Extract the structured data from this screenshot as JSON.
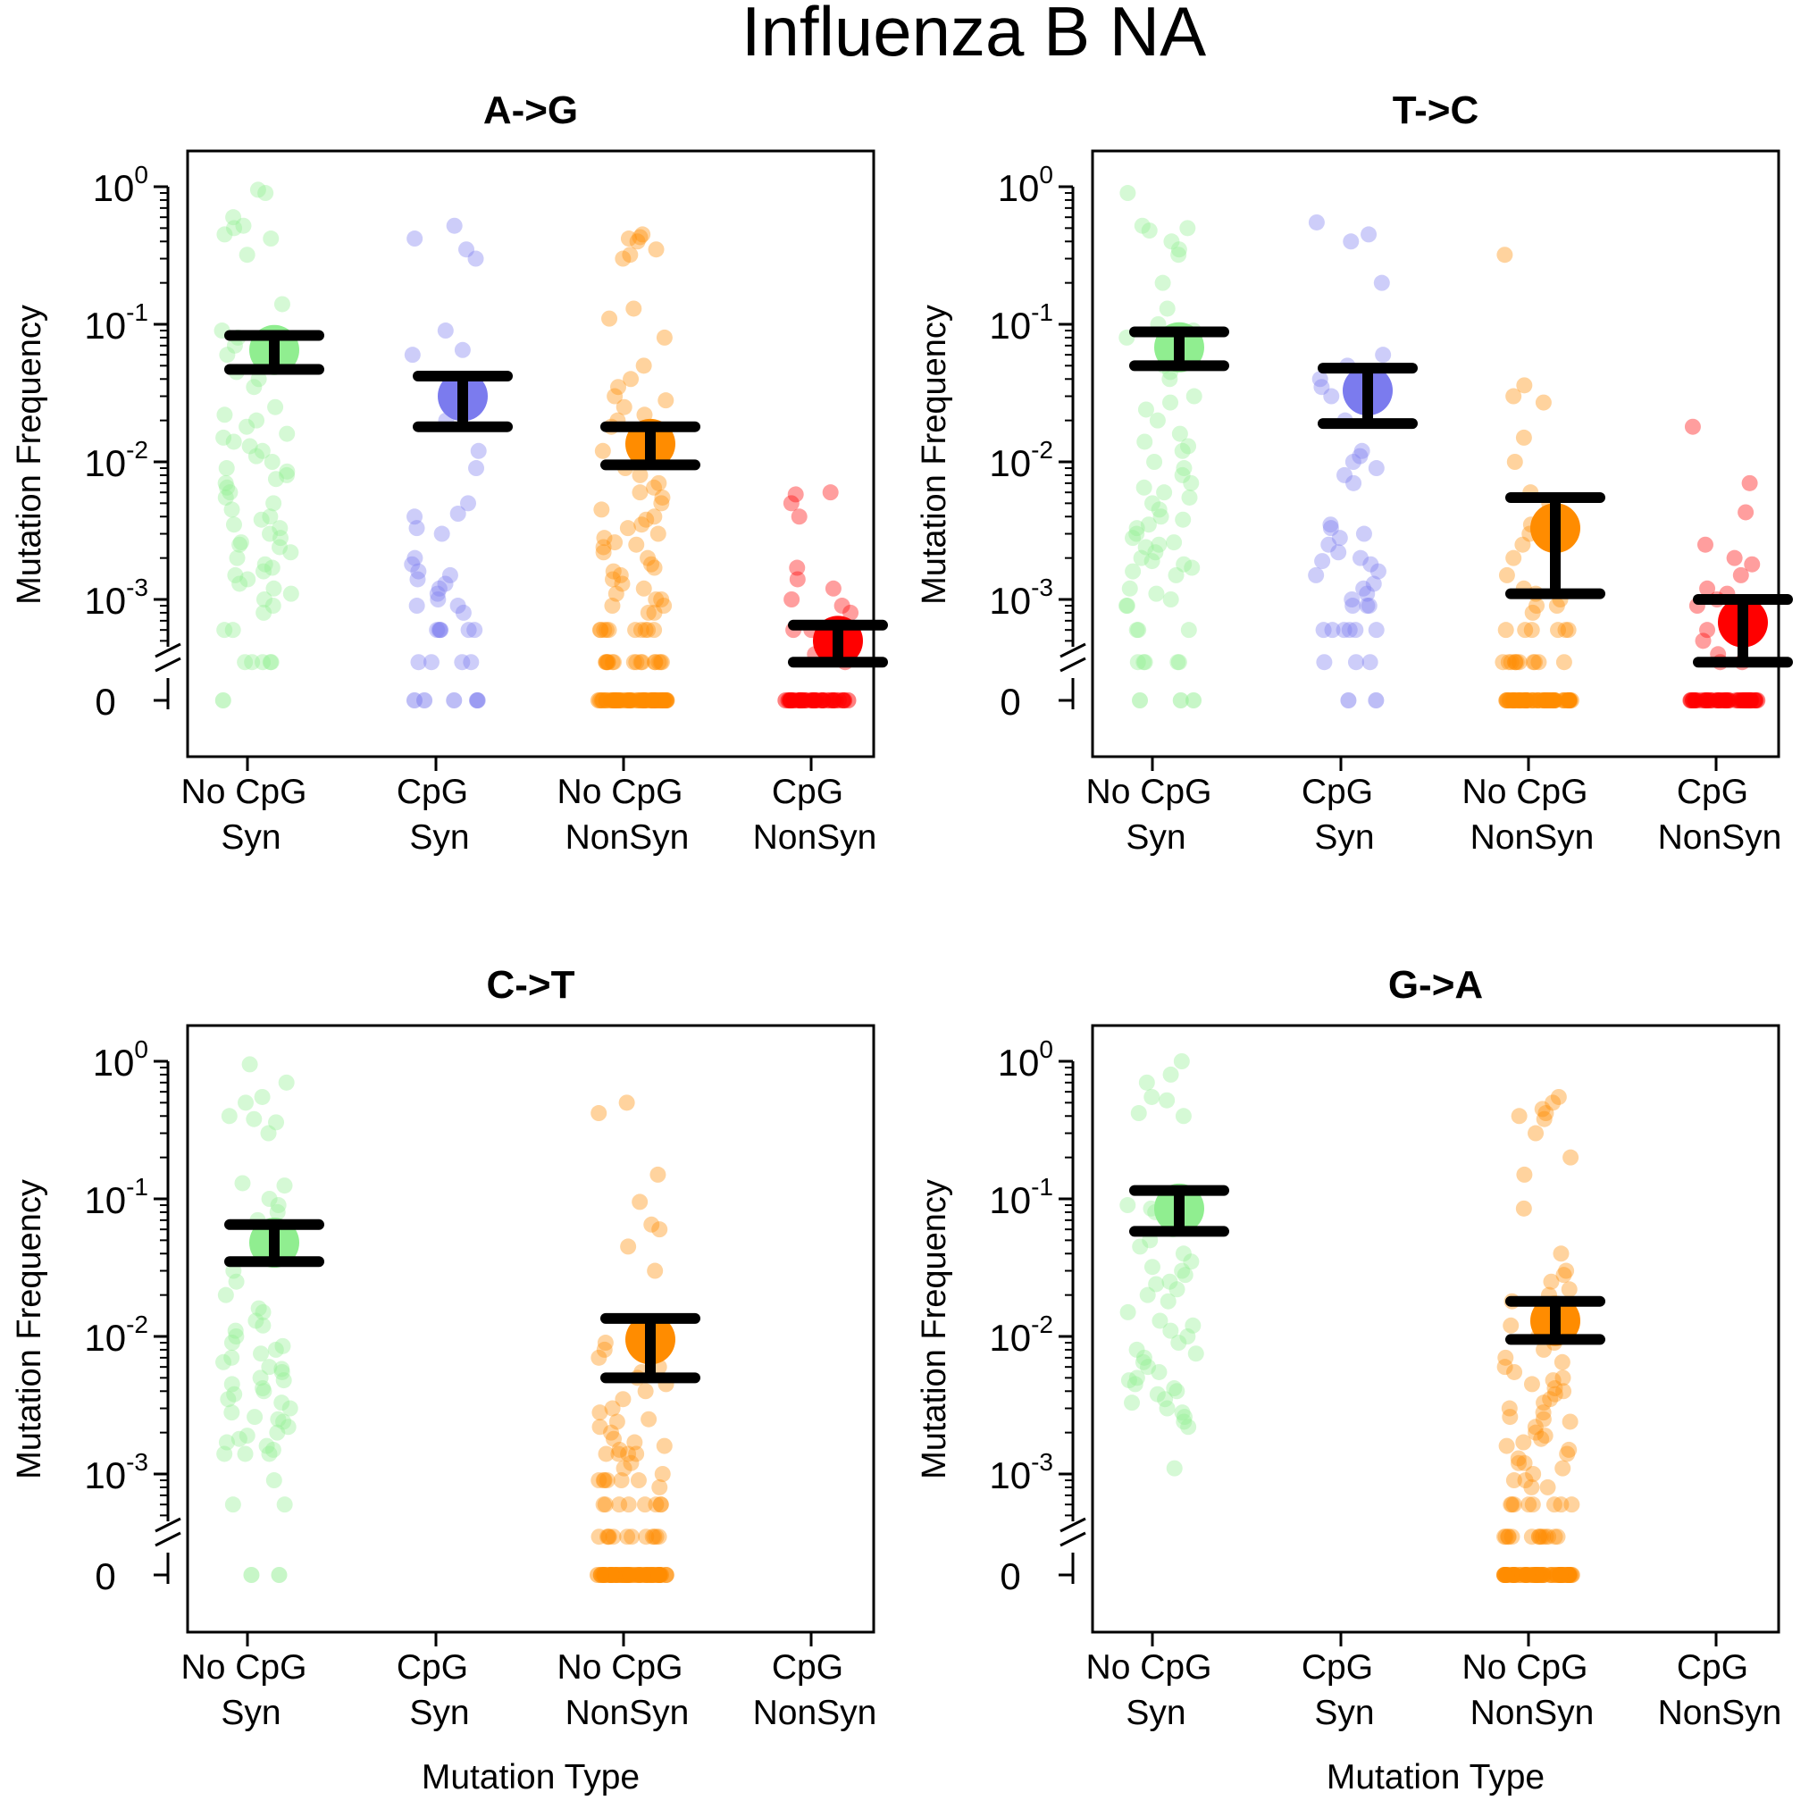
{
  "title": "Influenza B NA",
  "ylabel": "Mutation Frequency",
  "xlabel": "Mutation Type",
  "y_tick_labels": [
    {
      "base": "10",
      "exp": "0"
    },
    {
      "base": "10",
      "exp": "-1"
    },
    {
      "base": "10",
      "exp": "-2"
    },
    {
      "base": "10",
      "exp": "-3"
    },
    {
      "base": "0",
      "exp": ""
    }
  ],
  "categories": [
    {
      "line1": "No CpG",
      "line2": "Syn"
    },
    {
      "line1": "CpG",
      "line2": "Syn"
    },
    {
      "line1": "No CpG",
      "line2": "NonSyn"
    },
    {
      "line1": "CpG",
      "line2": "NonSyn"
    }
  ],
  "colors": {
    "no_cpg_syn": "#90ee90",
    "cpg_syn": "#7b7bee",
    "no_cpg_nonsyn": "#ff8c00",
    "cpg_nonsyn": "#ff0000",
    "error_bar": "#000000"
  },
  "chart_data": [
    {
      "type": "scatter",
      "title": "A->G",
      "yscale": "log with zero break",
      "ylim": [
        0.00035,
        1
      ],
      "series": [
        {
          "category": "No CpG Syn",
          "mean": 0.065,
          "ci": [
            0.047,
            0.083
          ],
          "zeros": 1,
          "values": [
            0.9,
            0.95,
            0.6,
            0.52,
            0.5,
            0.45,
            0.42,
            0.32,
            0.14,
            0.09,
            0.08,
            0.07,
            0.06,
            0.05,
            0.045,
            0.04,
            0.035,
            0.025,
            0.022,
            0.02,
            0.018,
            0.016,
            0.015,
            0.014,
            0.013,
            0.012,
            0.011,
            0.01,
            0.009,
            0.0085,
            0.008,
            0.0075,
            0.007,
            0.0065,
            0.006,
            0.0055,
            0.005,
            0.0045,
            0.004,
            0.0038,
            0.0035,
            0.0033,
            0.003,
            0.0028,
            0.0026,
            0.0025,
            0.0024,
            0.0022,
            0.002,
            0.0018,
            0.0017,
            0.0016,
            0.0015,
            0.0014,
            0.0013,
            0.0012,
            0.0011,
            0.001,
            0.0009,
            0.0008,
            0.0006,
            0.0006,
            0.00035,
            0.00035,
            0.00035,
            0.00035,
            0.00035
          ]
        },
        {
          "category": "CpG Syn",
          "mean": 0.03,
          "ci": [
            0.018,
            0.042
          ],
          "zeros": 5,
          "values": [
            0.52,
            0.42,
            0.35,
            0.3,
            0.09,
            0.065,
            0.06,
            0.04,
            0.02,
            0.012,
            0.009,
            0.005,
            0.0042,
            0.004,
            0.0033,
            0.003,
            0.002,
            0.0018,
            0.0016,
            0.0015,
            0.0014,
            0.0013,
            0.0012,
            0.0011,
            0.001,
            0.0009,
            0.0009,
            0.0008,
            0.0006,
            0.0006,
            0.0006,
            0.0006,
            0.0006,
            0.0006,
            0.00035,
            0.00035,
            0.00035,
            0.00035
          ]
        },
        {
          "category": "No CpG NonSyn",
          "mean": 0.0135,
          "ci": [
            0.0095,
            0.018
          ],
          "zeros": 60,
          "values": [
            0.45,
            0.43,
            0.42,
            0.4,
            0.35,
            0.32,
            0.3,
            0.13,
            0.11,
            0.08,
            0.05,
            0.04,
            0.035,
            0.03,
            0.028,
            0.025,
            0.022,
            0.02,
            0.018,
            0.016,
            0.014,
            0.012,
            0.011,
            0.01,
            0.009,
            0.008,
            0.007,
            0.0065,
            0.006,
            0.0055,
            0.005,
            0.0045,
            0.004,
            0.0038,
            0.0035,
            0.0033,
            0.003,
            0.0028,
            0.0026,
            0.0025,
            0.0024,
            0.0022,
            0.002,
            0.0018,
            0.0017,
            0.0016,
            0.0015,
            0.0014,
            0.0013,
            0.0012,
            0.0011,
            0.001,
            0.001,
            0.0009,
            0.0009,
            0.0008,
            0.0008,
            0.0006,
            0.0006,
            0.0006,
            0.0006,
            0.0006,
            0.0006,
            0.0006,
            0.0006,
            0.0006,
            0.0006,
            0.00035,
            0.00035,
            0.00035,
            0.00035,
            0.00035,
            0.00035,
            0.00035,
            0.00035,
            0.00035,
            0.00035,
            0.00035,
            0.00035,
            0.00035,
            0.00035,
            0.00035,
            0.00035
          ]
        },
        {
          "category": "CpG NonSyn",
          "mean": 0.0005,
          "ci": [
            0.00035,
            0.00065
          ],
          "zeros": 40,
          "values": [
            0.006,
            0.0058,
            0.005,
            0.004,
            0.0017,
            0.0014,
            0.0012,
            0.001,
            0.0009,
            0.0008,
            0.0006,
            0.0006,
            0.0005,
            0.0004,
            0.00035
          ]
        }
      ]
    },
    {
      "type": "scatter",
      "title": "T->C",
      "yscale": "log with zero break",
      "ylim": [
        0.00035,
        1
      ],
      "series": [
        {
          "category": "No CpG Syn",
          "mean": 0.068,
          "ci": [
            0.05,
            0.088
          ],
          "zeros": 3,
          "values": [
            0.9,
            0.52,
            0.5,
            0.48,
            0.4,
            0.35,
            0.32,
            0.2,
            0.13,
            0.1,
            0.09,
            0.08,
            0.07,
            0.06,
            0.05,
            0.045,
            0.04,
            0.03,
            0.027,
            0.024,
            0.02,
            0.016,
            0.014,
            0.013,
            0.012,
            0.01,
            0.009,
            0.008,
            0.007,
            0.0065,
            0.006,
            0.0055,
            0.005,
            0.0045,
            0.004,
            0.0038,
            0.0035,
            0.0033,
            0.003,
            0.0028,
            0.0026,
            0.0025,
            0.0024,
            0.0022,
            0.002,
            0.0019,
            0.0018,
            0.0017,
            0.0016,
            0.0015,
            0.0012,
            0.0011,
            0.001,
            0.0009,
            0.0009,
            0.0006,
            0.0006,
            0.0006,
            0.00035,
            0.00035,
            0.00035,
            0.00035,
            0.00035
          ]
        },
        {
          "category": "CpG Syn",
          "mean": 0.033,
          "ci": [
            0.019,
            0.048
          ],
          "zeros": 2,
          "values": [
            0.55,
            0.45,
            0.4,
            0.2,
            0.06,
            0.05,
            0.04,
            0.035,
            0.03,
            0.02,
            0.012,
            0.011,
            0.01,
            0.009,
            0.008,
            0.007,
            0.0035,
            0.0033,
            0.003,
            0.0028,
            0.0025,
            0.0022,
            0.002,
            0.0019,
            0.0018,
            0.0016,
            0.0015,
            0.0013,
            0.0012,
            0.0011,
            0.001,
            0.0009,
            0.0009,
            0.0009,
            0.0006,
            0.0006,
            0.0006,
            0.0006,
            0.0006,
            0.0006,
            0.00035,
            0.00035,
            0.00035
          ]
        },
        {
          "category": "No CpG NonSyn",
          "mean": 0.0033,
          "ci": [
            0.0011,
            0.0055
          ],
          "zeros": 55,
          "values": [
            0.32,
            0.036,
            0.03,
            0.027,
            0.015,
            0.01,
            0.006,
            0.005,
            0.004,
            0.0035,
            0.003,
            0.0025,
            0.002,
            0.0015,
            0.0012,
            0.0011,
            0.001,
            0.0009,
            0.0009,
            0.0008,
            0.0006,
            0.0006,
            0.0006,
            0.0006,
            0.0006,
            0.0006,
            0.00035,
            0.00035,
            0.00035,
            0.00035,
            0.00035,
            0.00035,
            0.00035,
            0.00035,
            0.00035,
            0.00035,
            0.00035
          ]
        },
        {
          "category": "CpG NonSyn",
          "mean": 0.00068,
          "ci": [
            0.00035,
            0.001
          ],
          "zeros": 50,
          "values": [
            0.018,
            0.007,
            0.0043,
            0.0025,
            0.002,
            0.0018,
            0.0015,
            0.0012,
            0.0011,
            0.001,
            0.0009,
            0.0008,
            0.0007,
            0.0006,
            0.0005,
            0.0004,
            0.00035,
            0.00035
          ]
        }
      ]
    },
    {
      "type": "scatter",
      "title": "C->T",
      "yscale": "log with zero break",
      "ylim": [
        0.00035,
        1
      ],
      "series": [
        {
          "category": "No CpG Syn",
          "mean": 0.048,
          "ci": [
            0.035,
            0.065
          ],
          "zeros": 2,
          "values": [
            0.95,
            0.7,
            0.55,
            0.5,
            0.4,
            0.38,
            0.36,
            0.3,
            0.13,
            0.125,
            0.1,
            0.09,
            0.08,
            0.07,
            0.06,
            0.05,
            0.04,
            0.03,
            0.025,
            0.02,
            0.016,
            0.015,
            0.013,
            0.012,
            0.011,
            0.01,
            0.009,
            0.0085,
            0.008,
            0.0075,
            0.007,
            0.0065,
            0.006,
            0.0058,
            0.0055,
            0.005,
            0.0048,
            0.0045,
            0.0042,
            0.004,
            0.0038,
            0.0035,
            0.0033,
            0.003,
            0.0028,
            0.0026,
            0.0025,
            0.0024,
            0.0022,
            0.002,
            0.0019,
            0.0018,
            0.0017,
            0.0016,
            0.0015,
            0.0014,
            0.0014,
            0.0014,
            0.0009,
            0.0006,
            0.0006
          ]
        },
        {
          "category": "CpG Syn",
          "mean": null,
          "ci": null,
          "zeros": 0,
          "values": []
        },
        {
          "category": "No CpG NonSyn",
          "mean": 0.0095,
          "ci": [
            0.005,
            0.0135
          ],
          "zeros": 55,
          "values": [
            0.5,
            0.42,
            0.15,
            0.095,
            0.065,
            0.06,
            0.045,
            0.03,
            0.012,
            0.01,
            0.009,
            0.008,
            0.007,
            0.006,
            0.0055,
            0.005,
            0.0045,
            0.004,
            0.0035,
            0.003,
            0.0028,
            0.0025,
            0.0024,
            0.0022,
            0.002,
            0.0018,
            0.0017,
            0.0016,
            0.0015,
            0.0014,
            0.0014,
            0.0014,
            0.0014,
            0.0012,
            0.0011,
            0.001,
            0.0009,
            0.0009,
            0.0009,
            0.0009,
            0.0009,
            0.0009,
            0.0008,
            0.0006,
            0.0006,
            0.0006,
            0.0006,
            0.0006,
            0.0006,
            0.0006,
            0.0006,
            0.00035,
            0.00035,
            0.00035,
            0.00035,
            0.00035,
            0.00035,
            0.00035,
            0.00035,
            0.00035,
            0.00035,
            0.00035,
            0.00035
          ]
        },
        {
          "category": "CpG NonSyn",
          "mean": null,
          "ci": null,
          "zeros": 0,
          "values": []
        }
      ]
    },
    {
      "type": "scatter",
      "title": "G->A",
      "yscale": "log with zero break",
      "ylim": [
        0.00035,
        1
      ],
      "series": [
        {
          "category": "No CpG Syn",
          "mean": 0.085,
          "ci": [
            0.058,
            0.115
          ],
          "zeros": 0,
          "values": [
            1.0,
            0.8,
            0.7,
            0.55,
            0.52,
            0.42,
            0.4,
            0.1,
            0.09,
            0.085,
            0.08,
            0.07,
            0.06,
            0.05,
            0.045,
            0.04,
            0.035,
            0.032,
            0.03,
            0.028,
            0.025,
            0.024,
            0.022,
            0.02,
            0.018,
            0.015,
            0.013,
            0.012,
            0.011,
            0.01,
            0.009,
            0.008,
            0.0075,
            0.007,
            0.0065,
            0.006,
            0.0055,
            0.005,
            0.0048,
            0.0045,
            0.0042,
            0.004,
            0.0038,
            0.0035,
            0.0033,
            0.003,
            0.0028,
            0.0026,
            0.0024,
            0.0022,
            0.0011
          ]
        },
        {
          "category": "CpG Syn",
          "mean": null,
          "ci": null,
          "zeros": 0,
          "values": []
        },
        {
          "category": "No CpG NonSyn",
          "mean": 0.013,
          "ci": [
            0.0095,
            0.018
          ],
          "zeros": 60,
          "values": [
            0.55,
            0.5,
            0.45,
            0.42,
            0.4,
            0.38,
            0.3,
            0.2,
            0.15,
            0.085,
            0.04,
            0.03,
            0.028,
            0.025,
            0.022,
            0.02,
            0.018,
            0.016,
            0.015,
            0.014,
            0.012,
            0.011,
            0.01,
            0.009,
            0.008,
            0.007,
            0.0065,
            0.006,
            0.0055,
            0.005,
            0.0048,
            0.0045,
            0.0042,
            0.004,
            0.0038,
            0.0035,
            0.0033,
            0.003,
            0.0028,
            0.0026,
            0.0025,
            0.0024,
            0.0022,
            0.002,
            0.0019,
            0.0018,
            0.0017,
            0.0016,
            0.0015,
            0.0014,
            0.0013,
            0.0012,
            0.0012,
            0.0011,
            0.001,
            0.0009,
            0.0009,
            0.0008,
            0.0008,
            0.0006,
            0.0006,
            0.0006,
            0.0006,
            0.0006,
            0.0006,
            0.0006,
            0.0006,
            0.00035,
            0.00035,
            0.00035,
            0.00035,
            0.00035,
            0.00035,
            0.00035,
            0.00035,
            0.00035,
            0.00035,
            0.00035,
            0.00035,
            0.00035,
            0.00035
          ]
        },
        {
          "category": "CpG NonSyn",
          "mean": null,
          "ci": null,
          "zeros": 0,
          "values": []
        }
      ]
    }
  ]
}
